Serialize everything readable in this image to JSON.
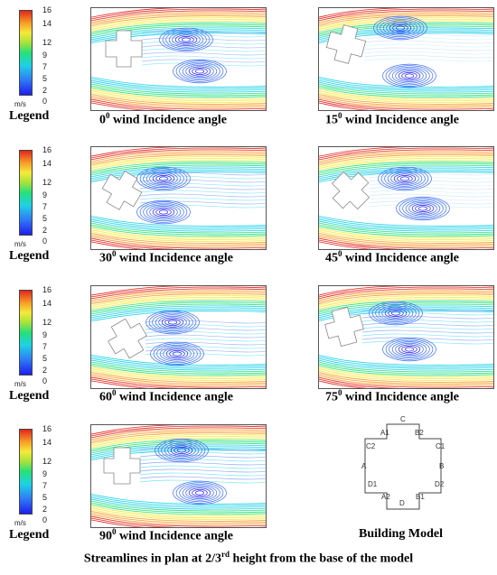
{
  "legend": {
    "ticks": [
      "16",
      "14",
      "12",
      "9",
      "7",
      "5",
      "2",
      "0"
    ],
    "unit": "m/s",
    "label": "Legend"
  },
  "panels": [
    {
      "angle": "0",
      "suffix": "wind Incidence angle"
    },
    {
      "angle": "15",
      "suffix": "wind Incidence angle"
    },
    {
      "angle": "30",
      "suffix": "wind Incidence angle"
    },
    {
      "angle": "45",
      "suffix": "wind Incidence angle"
    },
    {
      "angle": "60",
      "suffix": "wind Incidence angle"
    },
    {
      "angle": "75",
      "suffix": "wind Incidence angle"
    },
    {
      "angle": "90",
      "suffix": "wind Incidence angle"
    }
  ],
  "angle_superscript": "0",
  "building_model": {
    "caption": "Building Model",
    "points": [
      "C",
      "A1",
      "B2",
      "C2",
      "C1",
      "A",
      "B",
      "D1",
      "D2",
      "A2",
      "B1",
      "D"
    ]
  },
  "main_caption": {
    "prefix": "Streamlines in plan at 2/3",
    "sup": "rd",
    "suffix": " height from the base of the model"
  },
  "colors": {
    "fast": "#e3251d",
    "upper": "#f79b25",
    "mid": "#f5e93a",
    "green": "#25e07a",
    "cyan": "#1ed2e6",
    "slow": "#1e1ef0"
  }
}
